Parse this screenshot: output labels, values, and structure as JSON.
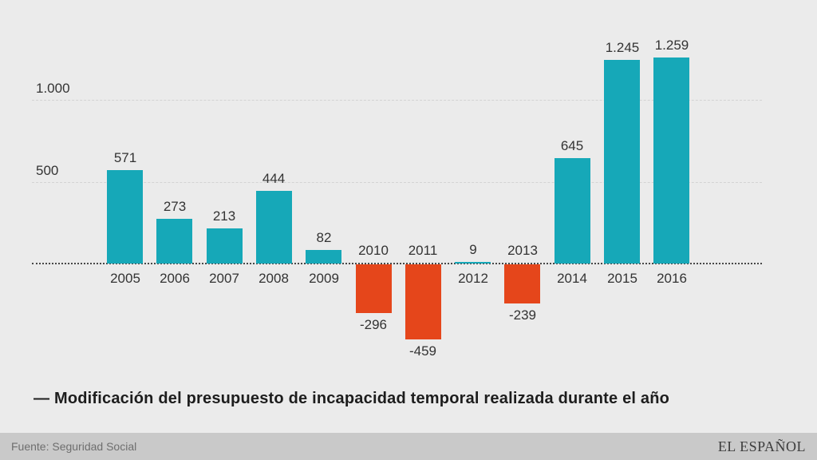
{
  "chart_data": {
    "type": "bar",
    "title": "— Modificación del presupuesto de incapacidad temporal realizada durante el año",
    "categories": [
      "2005",
      "2006",
      "2007",
      "2008",
      "2009",
      "2010",
      "2011",
      "2012",
      "2013",
      "2014",
      "2015",
      "2016"
    ],
    "values": [
      571,
      273,
      213,
      444,
      82,
      -296,
      -459,
      9,
      -239,
      645,
      1245,
      1259
    ],
    "value_labels": [
      "571",
      "273",
      "213",
      "444",
      "82",
      "-296",
      "-459",
      "9",
      "-239",
      "645",
      "1.245",
      "1.259"
    ],
    "yticks": [
      {
        "value": 500,
        "label": "500"
      },
      {
        "value": 1000,
        "label": "1.000"
      }
    ],
    "ylim": [
      -500,
      1300
    ],
    "xlabel": "",
    "ylabel": "",
    "legend_position": "below-chart",
    "grid": "horizontal dashed gridlines at 500 and 1000, dotted zero baseline",
    "colors": {
      "positive": "#16a8b8",
      "negative": "#e5461b"
    }
  },
  "page": {
    "background": "#ebebeb",
    "footer_background": "#c9c9c9"
  },
  "footer": {
    "source": "Fuente: Seguridad Social",
    "brand": "EL ESPAÑOL"
  }
}
